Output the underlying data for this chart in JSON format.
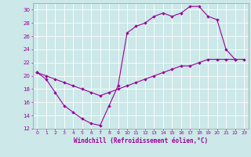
{
  "xlabel": "Windchill (Refroidissement éolien,°C)",
  "bg_color": "#cce8e8",
  "line_color": "#990099",
  "grid_color": "#ffffff",
  "xlim": [
    -0.5,
    23.5
  ],
  "ylim": [
    12,
    31
  ],
  "xticks": [
    0,
    1,
    2,
    3,
    4,
    5,
    6,
    7,
    8,
    9,
    10,
    11,
    12,
    13,
    14,
    15,
    16,
    17,
    18,
    19,
    20,
    21,
    22,
    23
  ],
  "yticks": [
    12,
    14,
    16,
    18,
    20,
    22,
    24,
    26,
    28,
    30
  ],
  "upper_x": [
    0,
    1,
    2,
    3,
    4,
    5,
    6,
    7,
    8,
    9,
    10,
    11,
    12,
    13,
    14,
    15,
    16,
    17,
    18,
    19,
    20,
    21,
    22
  ],
  "upper_y": [
    20.5,
    19.5,
    17.5,
    15.5,
    14.5,
    13.5,
    12.8,
    12.5,
    15.5,
    18.5,
    26.5,
    27.5,
    28.0,
    29.0,
    29.5,
    29.0,
    29.5,
    30.5,
    30.5,
    29.0,
    28.5,
    24.0,
    22.5
  ],
  "lower_x": [
    0,
    1,
    2,
    3,
    4,
    5,
    6,
    7,
    8,
    9,
    10,
    11,
    12,
    13,
    14,
    15,
    16,
    17,
    18,
    19,
    20,
    21,
    22,
    23
  ],
  "lower_y": [
    20.5,
    20.0,
    19.5,
    19.0,
    18.5,
    18.0,
    17.5,
    17.0,
    17.5,
    18.0,
    18.5,
    19.0,
    19.5,
    20.0,
    20.5,
    21.0,
    21.5,
    21.5,
    22.0,
    22.5,
    22.5,
    22.5,
    22.5,
    22.5
  ]
}
